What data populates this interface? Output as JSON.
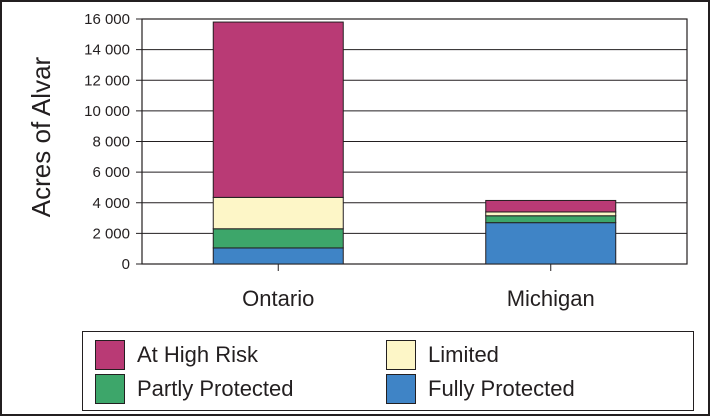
{
  "chart_data": {
    "type": "bar",
    "stacked": true,
    "categories": [
      "Ontario",
      "Michigan"
    ],
    "series": [
      {
        "name": "Fully Protected",
        "color": "#3f84c6",
        "values": [
          1050,
          2700
        ]
      },
      {
        "name": "Partly Protected",
        "color": "#3da66a",
        "values": [
          1250,
          450
        ]
      },
      {
        "name": "Limited",
        "color": "#fdf6c7",
        "values": [
          2050,
          250
        ]
      },
      {
        "name": "At High Risk",
        "color": "#b93a75",
        "values": [
          11450,
          750
        ]
      }
    ],
    "ylabel": "Acres of Alvar",
    "xlabel": "",
    "ylim": [
      0,
      16000
    ],
    "yticks": [
      0,
      2000,
      4000,
      6000,
      8000,
      10000,
      12000,
      14000,
      16000
    ],
    "ytick_labels": [
      "0",
      "2 000",
      "4 000",
      "6 000",
      "8 000",
      "10 000",
      "12 000",
      "14 000",
      "16 000"
    ],
    "grid": true,
    "legend_position": "bottom",
    "legend": [
      {
        "label": "At High Risk",
        "color": "#b93a75"
      },
      {
        "label": "Limited",
        "color": "#fdf6c7"
      },
      {
        "label": "Partly Protected",
        "color": "#3da66a"
      },
      {
        "label": "Fully Protected",
        "color": "#3f84c6"
      }
    ]
  }
}
